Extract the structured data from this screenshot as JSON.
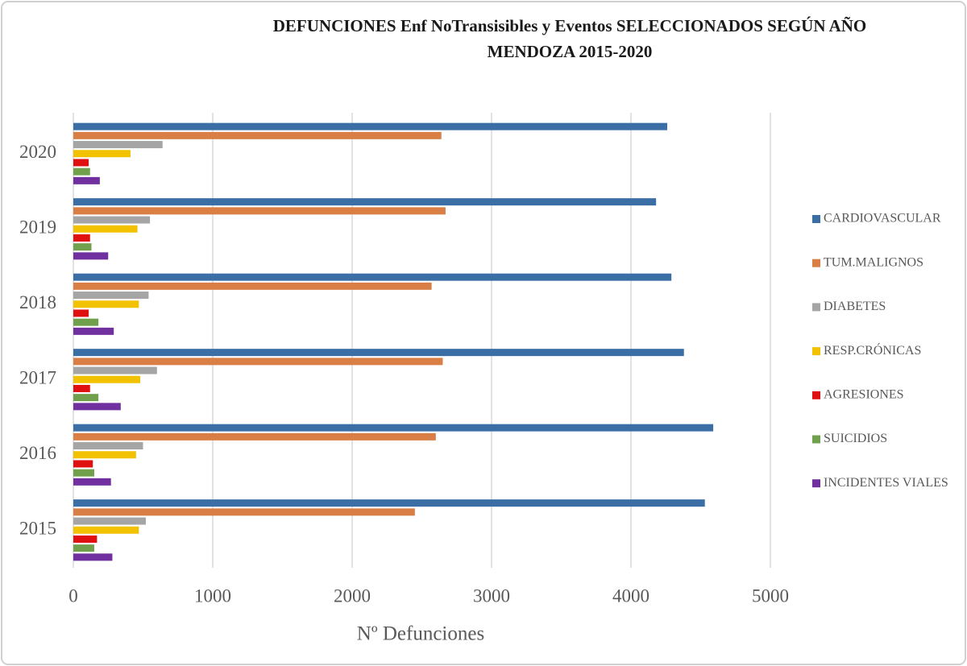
{
  "chart_data": {
    "type": "hbar",
    "title": "DEFUNCIONES Enf NoTransisibles y Eventos  SELECCIONADOS  SEGÚN AÑO",
    "subtitle": "MENDOZA  2015-2020",
    "x_label": "Nº Defunciones",
    "categories": [
      "2015",
      "2016",
      "2017",
      "2018",
      "2019",
      "2020"
    ],
    "series": [
      {
        "name": "CARDIOVASCULAR",
        "color": "#3a6ea5",
        "values": [
          4530,
          4590,
          4380,
          4290,
          4180,
          4260
        ]
      },
      {
        "name": "TUM.MALIGNOS",
        "color": "#d97f45",
        "values": [
          2450,
          2600,
          2650,
          2570,
          2670,
          2640
        ]
      },
      {
        "name": "DIABETES",
        "color": "#a5a5a5",
        "values": [
          520,
          500,
          600,
          540,
          550,
          640
        ]
      },
      {
        "name": "RESP.CRÓNICAS",
        "color": "#f2c200",
        "values": [
          470,
          450,
          480,
          470,
          460,
          410
        ]
      },
      {
        "name": "AGRESIONES",
        "color": "#e01010",
        "values": [
          170,
          140,
          120,
          110,
          120,
          110
        ]
      },
      {
        "name": "SUICIDIOS",
        "color": "#70a04c",
        "values": [
          150,
          150,
          180,
          180,
          130,
          120
        ]
      },
      {
        "name": "INCIDENTES VIALES",
        "color": "#7030a0",
        "values": [
          280,
          270,
          340,
          290,
          250,
          190
        ]
      }
    ],
    "xlim": [
      0,
      5000
    ],
    "xticks": [
      0,
      1000,
      2000,
      3000,
      4000,
      5000
    ],
    "grid": true,
    "legend": "right"
  }
}
